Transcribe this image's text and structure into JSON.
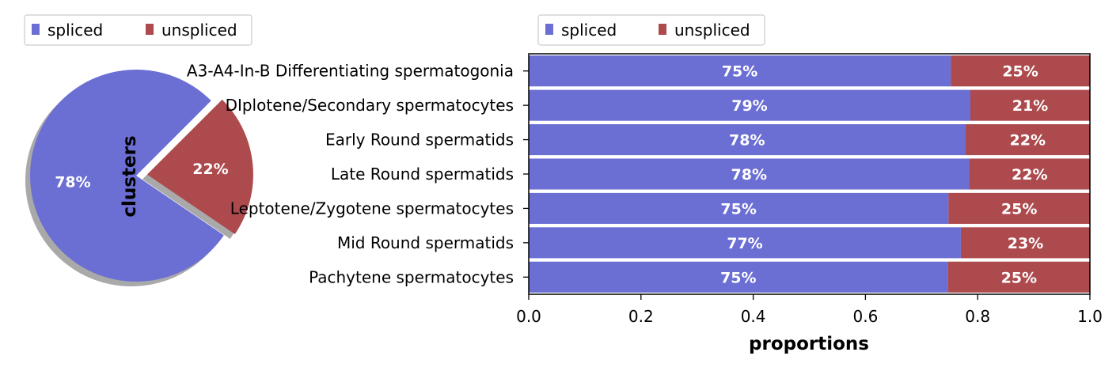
{
  "colors": {
    "spliced": "#6b6ed3",
    "unspliced": "#ad4a4d",
    "shadow": "#9a9a9a"
  },
  "pie": {
    "legend": {
      "spliced": "spliced",
      "unspliced": "unspliced"
    },
    "ylabel": "clusters",
    "chart_data": {
      "type": "pie",
      "labels": [
        "spliced",
        "unspliced"
      ],
      "values": [
        78,
        22
      ],
      "value_labels": [
        "78%",
        "22%"
      ],
      "explode": "unspliced slice offset",
      "shadow": true,
      "legend_placement": "top-left"
    }
  },
  "bar": {
    "legend": {
      "spliced": "spliced",
      "unspliced": "unspliced"
    },
    "xlabel": "proportions",
    "xticks": [
      "0.0",
      "0.2",
      "0.4",
      "0.6",
      "0.8",
      "1.0"
    ]
  },
  "chart_data": {
    "type": "bar",
    "orientation": "horizontal",
    "stacked": true,
    "categories": [
      "A3-A4-In-B Differentiating spermatogonia",
      "DIplotene/Secondary spermatocytes",
      "Early Round spermatids",
      "Late Round spermatids",
      "Leptotene/Zygotene spermatocytes",
      "Mid Round spermatids",
      "Pachytene spermatocytes"
    ],
    "series": [
      {
        "name": "spliced",
        "values": [
          0.752,
          0.787,
          0.778,
          0.785,
          0.748,
          0.77,
          0.747
        ],
        "labels": [
          "75%",
          "79%",
          "78%",
          "78%",
          "75%",
          "77%",
          "75%"
        ]
      },
      {
        "name": "unspliced",
        "values": [
          0.248,
          0.213,
          0.222,
          0.215,
          0.252,
          0.23,
          0.253
        ],
        "labels": [
          "25%",
          "21%",
          "22%",
          "22%",
          "25%",
          "23%",
          "25%"
        ]
      }
    ],
    "xlabel": "proportions",
    "xlim": [
      0,
      1
    ],
    "grid": false,
    "legend_placement": "top-left"
  }
}
